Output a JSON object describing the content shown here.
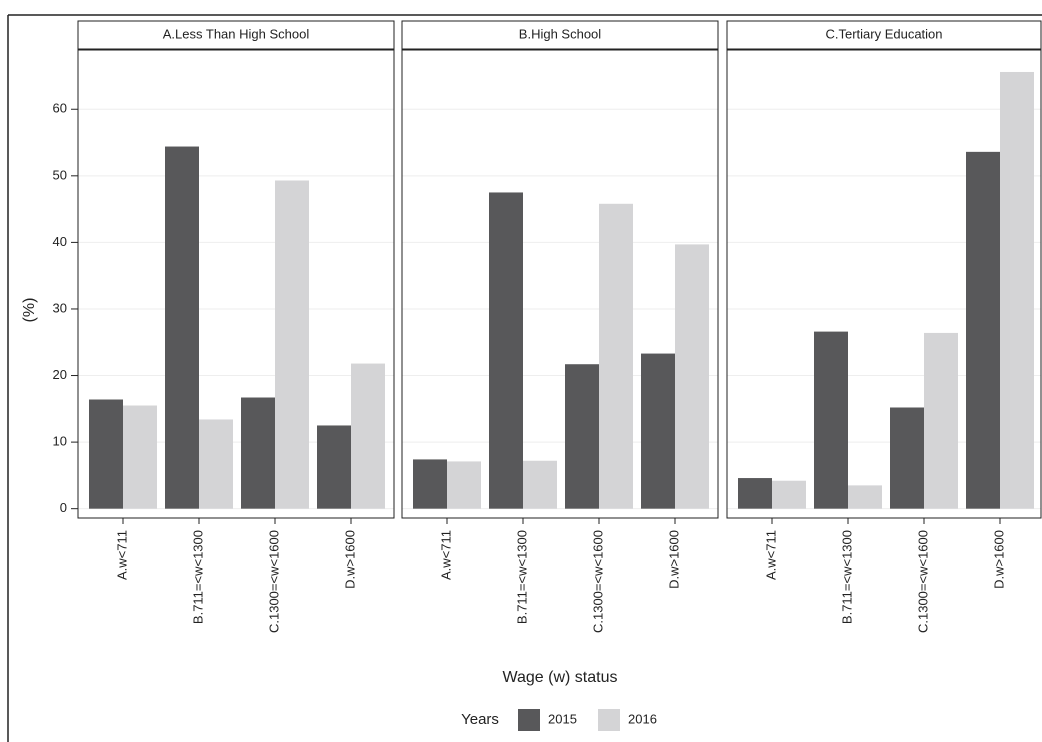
{
  "chart_data": {
    "type": "bar",
    "ylabel": "(%)",
    "xlabel": "Wage (w) status",
    "legend_title": "Years",
    "categories": [
      "A.w<711",
      "B.711=<w<1300",
      "C.1300=<w<1600",
      "D.w>1600"
    ],
    "series": [
      {
        "name": "2015",
        "color": "#58585a"
      },
      {
        "name": "2016",
        "color": "#d4d4d6"
      }
    ],
    "ylim": [
      -1.4,
      68.9
    ],
    "yticks": [
      0,
      10,
      20,
      30,
      40,
      50,
      60
    ],
    "grid": true,
    "panels": [
      {
        "title": "A.Less Than High School",
        "series": [
          [
            16.4,
            54.4,
            16.7,
            12.5
          ],
          [
            15.5,
            13.4,
            49.3,
            21.8
          ]
        ]
      },
      {
        "title": "B.High School",
        "series": [
          [
            7.4,
            47.5,
            21.7,
            23.3
          ],
          [
            7.1,
            7.2,
            45.8,
            39.7
          ]
        ]
      },
      {
        "title": "C.Tertiary Education",
        "series": [
          [
            4.6,
            26.6,
            15.2,
            53.6
          ],
          [
            4.2,
            3.5,
            26.4,
            65.6
          ]
        ]
      }
    ]
  }
}
